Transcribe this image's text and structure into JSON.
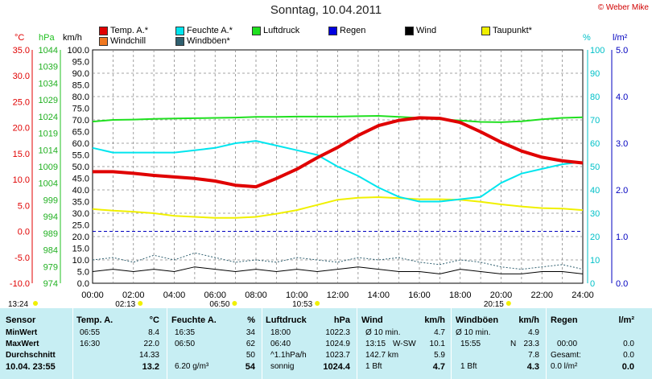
{
  "title": "Sonntag, 10.04.2011",
  "credit": "© Weber Mike",
  "legend": [
    {
      "label": "Temp. A.*",
      "color": "#e00000",
      "row": 0
    },
    {
      "label": "Feuchte A.*",
      "color": "#00e5ee",
      "row": 0
    },
    {
      "label": "Luftdruck",
      "color": "#20e020",
      "row": 0
    },
    {
      "label": "Regen",
      "color": "#0000e0",
      "row": 0
    },
    {
      "label": "Wind",
      "color": "#000000",
      "row": 0
    },
    {
      "label": "Taupunkt*",
      "color": "#f0f000",
      "row": 0
    },
    {
      "label": "Windchill",
      "color": "#f07820",
      "row": 1
    },
    {
      "label": "Windböen*",
      "color": "#306070",
      "row": 1
    }
  ],
  "units": {
    "temp": "°C",
    "press": "hPa",
    "wind": "km/h",
    "hum": "%",
    "rain": "l/m²"
  },
  "chart_data": {
    "type": "line",
    "x_ticks": [
      "00:00",
      "02:00",
      "04:00",
      "06:00",
      "08:00",
      "10:00",
      "12:00",
      "14:00",
      "16:00",
      "18:00",
      "20:00",
      "22:00",
      "24:00"
    ],
    "axes": {
      "temp_c": {
        "ticks": [
          "35.0",
          "30.0",
          "25.0",
          "20.0",
          "15.0",
          "10.0",
          "5.0",
          "0.0",
          "-5.0",
          "-10.0"
        ],
        "range": [
          -10,
          35
        ]
      },
      "press_hpa": {
        "ticks": [
          "1044",
          "1039",
          "1034",
          "1029",
          "1024",
          "1019",
          "1014",
          "1009",
          "1004",
          "999",
          "994",
          "989",
          "984",
          "979",
          "974"
        ],
        "range": [
          974,
          1044
        ]
      },
      "wind_kmh": {
        "ticks": [
          "100.0",
          "95.0",
          "90.0",
          "85.0",
          "80.0",
          "75.0",
          "70.0",
          "65.0",
          "60.0",
          "55.0",
          "50.0",
          "45.0",
          "40.0",
          "35.0",
          "30.0",
          "25.0",
          "20.0",
          "15.0",
          "10.0",
          "5.0",
          "0.0"
        ],
        "range": [
          0,
          100
        ]
      },
      "humidity_pct": {
        "ticks": [
          "100",
          "90",
          "80",
          "70",
          "60",
          "50",
          "40",
          "30",
          "20",
          "10",
          "0"
        ],
        "range": [
          0,
          100
        ]
      },
      "rain_lm2": {
        "ticks": [
          "5.0",
          "4.0",
          "3.0",
          "2.0",
          "1.0",
          "0.0"
        ],
        "range": [
          0,
          5
        ]
      }
    },
    "x_hours": [
      0,
      1,
      2,
      3,
      4,
      5,
      6,
      7,
      8,
      9,
      10,
      11,
      12,
      13,
      14,
      15,
      16,
      17,
      18,
      19,
      20,
      21,
      22,
      23,
      24
    ],
    "series": [
      {
        "name": "Temp. A.*",
        "axis": "temp_c",
        "color": "#e00000",
        "values": [
          11.5,
          11.5,
          11.2,
          10.8,
          10.5,
          10.2,
          9.7,
          8.9,
          8.6,
          10.2,
          12.0,
          14.2,
          16.2,
          18.5,
          20.4,
          21.4,
          21.9,
          21.8,
          21.0,
          19.2,
          17.2,
          15.5,
          14.3,
          13.6,
          13.2
        ]
      },
      {
        "name": "Feuchte A.*",
        "axis": "humidity_pct",
        "color": "#00e5ee",
        "values": [
          58,
          56,
          56,
          56,
          56,
          57,
          58,
          60,
          61,
          59,
          57,
          55,
          50,
          46,
          41,
          37,
          35,
          35,
          36,
          37,
          43,
          47,
          49,
          51,
          52
        ]
      },
      {
        "name": "Luftdruck",
        "axis": "press_hpa",
        "color": "#20e020",
        "values": [
          1022.5,
          1023.0,
          1023.1,
          1023.3,
          1023.4,
          1023.5,
          1023.6,
          1023.7,
          1023.9,
          1023.9,
          1024.0,
          1024.0,
          1024.0,
          1024.1,
          1024.2,
          1023.9,
          1023.6,
          1023.2,
          1022.8,
          1022.4,
          1022.3,
          1022.6,
          1023.2,
          1023.6,
          1023.8
        ]
      },
      {
        "name": "Taupunkt*",
        "axis": "temp_c",
        "color": "#f0f000",
        "values": [
          4.3,
          4.0,
          3.8,
          3.5,
          3.0,
          2.8,
          2.6,
          2.6,
          2.8,
          3.4,
          4.1,
          5.1,
          6.1,
          6.5,
          6.6,
          6.4,
          6.2,
          6.2,
          6.1,
          5.7,
          5.2,
          4.8,
          4.5,
          4.4,
          4.1
        ]
      },
      {
        "name": "Wind",
        "axis": "wind_kmh",
        "color": "#000000",
        "values": [
          5,
          6,
          5,
          6,
          5,
          7,
          6,
          5,
          6,
          5,
          6,
          5,
          6,
          7,
          6,
          5,
          5,
          4,
          6,
          5,
          4,
          4,
          5,
          5,
          4
        ]
      },
      {
        "name": "Windböen*",
        "axis": "wind_kmh",
        "color": "#306070",
        "values": [
          10,
          11,
          9,
          12,
          10,
          13,
          11,
          9,
          10,
          9,
          11,
          10,
          9,
          11,
          10,
          11,
          9,
          8,
          10,
          9,
          7,
          6,
          7,
          8,
          6
        ]
      }
    ],
    "zero_line_temp": 0,
    "markers": [
      {
        "label": "13:24"
      },
      {
        "label": "02:13"
      },
      {
        "label": "06:50"
      },
      {
        "label": "10:53"
      },
      {
        "label": "20:15"
      }
    ]
  },
  "table": {
    "headers": [
      "Sensor",
      "Temp. A.",
      "°C",
      "Feuchte A.",
      "%",
      "Luftdruck",
      "hPa",
      "Wind",
      "km/h",
      "Windböen",
      "km/h",
      "Regen",
      "l/m²"
    ],
    "rows": [
      {
        "label": "MinWert",
        "t_time": "06:55",
        "t_val": "8.4",
        "h_time": "16:35",
        "h_val": "34",
        "p_time": "18:00",
        "p_val": "1022.3",
        "w_time": "Ø 10 min.",
        "w_dir": "",
        "w_val": "4.7",
        "g_time": "Ø 10 min.",
        "g_dir": "",
        "g_val": "4.9",
        "r_time": "",
        "r_val": ""
      },
      {
        "label": "MaxWert",
        "t_time": "16:30",
        "t_val": "22.0",
        "h_time": "06:50",
        "h_val": "62",
        "p_time": "06:40",
        "p_val": "1024.9",
        "w_time": "13:15",
        "w_dir": "W-SW",
        "w_val": "10.1",
        "g_time": "15:55",
        "g_dir": "N",
        "g_val": "23.3",
        "r_time": "00:00",
        "r_val": "0.0"
      },
      {
        "label": "Durchschnitt",
        "t_time": "",
        "t_val": "14.33",
        "h_time": "",
        "h_val": "50",
        "p_time": "^1.1hPa/h",
        "p_val": "1023.7",
        "w_time": "142.7 km",
        "w_dir": "",
        "w_val": "5.9",
        "g_time": "",
        "g_dir": "",
        "g_val": "7.8",
        "r_time": "Gesamt:",
        "r_val": "0.0"
      },
      {
        "label": "10.04. 23:55",
        "t_time": "",
        "t_val": "13.2",
        "h_time": "6.20 g/m³",
        "h_val": "54",
        "p_time": "sonnig",
        "p_val": "1024.4",
        "w_time": "1 Bft",
        "w_dir": "",
        "w_val": "4.7",
        "g_time": "1 Bft",
        "g_dir": "",
        "g_val": "4.3",
        "r_time": "0.0 l/m²",
        "r_val": "0.0"
      }
    ]
  }
}
